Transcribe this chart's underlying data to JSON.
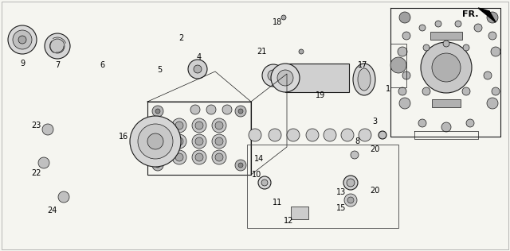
{
  "bg_color": "#f5f5f0",
  "line_color": "#1a1a1a",
  "fig_width": 6.4,
  "fig_height": 3.16,
  "dpi": 100,
  "fr_label": "FR."
}
